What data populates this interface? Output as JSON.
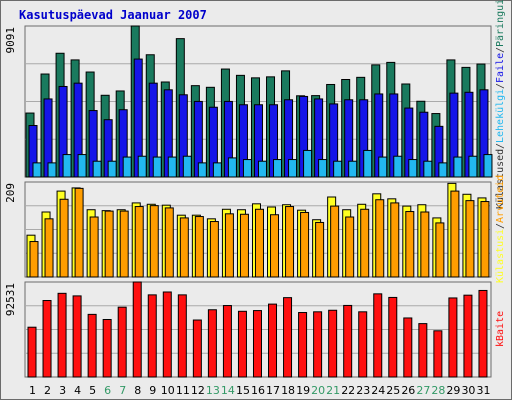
{
  "title": "Kasutuspäevad Jaanuar 2007",
  "colors": {
    "title": "#0000cc",
    "plot_bg": "#ebebeb",
    "frame_border": "#6b6b6b",
    "grid": "#aaaaaa",
    "weekend_label": "#339966",
    "weekday_label": "#000000"
  },
  "chart_data": [
    {
      "type": "bar",
      "panel": "top",
      "ytick_label": "9091",
      "ylim": [
        0,
        9091
      ],
      "right_labels": [
        "Külastused",
        "/",
        "Lehekülgi",
        "/",
        "Faile",
        "/",
        "Päringuid"
      ],
      "categories": [
        "1",
        "2",
        "3",
        "4",
        "5",
        "6",
        "7",
        "8",
        "9",
        "10",
        "11",
        "12",
        "13",
        "14",
        "15",
        "16",
        "17",
        "18",
        "19",
        "20",
        "21",
        "22",
        "23",
        "24",
        "25",
        "26",
        "27",
        "28",
        "29",
        "30",
        "31"
      ],
      "weekend": [
        "6",
        "7",
        "13",
        "14",
        "20",
        "21",
        "27",
        "28"
      ],
      "series": [
        {
          "name": "Päringuid",
          "color": "#1a7a5e",
          "values": [
            3850,
            6200,
            7450,
            7050,
            6320,
            4920,
            5180,
            9091,
            7360,
            5720,
            8330,
            5500,
            5400,
            6500,
            6120,
            5970,
            6030,
            6390,
            4890,
            4900,
            5570,
            5870,
            6000,
            6750,
            6900,
            5600,
            4560,
            3820,
            7050,
            6600,
            6800
          ]
        },
        {
          "name": "Faile",
          "color": "#1515e8",
          "values": [
            3100,
            4700,
            5450,
            5650,
            4000,
            3450,
            4050,
            7100,
            5650,
            5250,
            4950,
            4550,
            4200,
            4550,
            4350,
            4350,
            4350,
            4650,
            4850,
            4700,
            4400,
            4650,
            4650,
            5000,
            5000,
            4150,
            3900,
            3050,
            5050,
            5100,
            5250
          ]
        },
        {
          "name": "Lehekülgi",
          "color": "#22b8f0",
          "values": [
            850,
            850,
            1350,
            1350,
            950,
            950,
            1200,
            1250,
            1200,
            1200,
            1250,
            850,
            850,
            1150,
            1050,
            950,
            1050,
            1050,
            1600,
            1050,
            950,
            950,
            1600,
            1200,
            1250,
            1050,
            950,
            850,
            1200,
            1250,
            1350
          ]
        }
      ]
    },
    {
      "type": "bar",
      "panel": "middle",
      "ytick_label": "209",
      "ylim": [
        0,
        209
      ],
      "right_labels": [
        "Külastusi",
        "/",
        "Arvuteid"
      ],
      "categories": [
        "1",
        "2",
        "3",
        "4",
        "5",
        "6",
        "7",
        "8",
        "9",
        "10",
        "11",
        "12",
        "13",
        "14",
        "15",
        "16",
        "17",
        "18",
        "19",
        "20",
        "21",
        "22",
        "23",
        "24",
        "25",
        "26",
        "27",
        "28",
        "29",
        "30",
        "31"
      ],
      "series": [
        {
          "name": "Külastusi",
          "color": "#ffff22",
          "values": [
            92,
            143,
            189,
            196,
            148,
            146,
            148,
            163,
            160,
            158,
            136,
            136,
            128,
            149,
            148,
            161,
            154,
            159,
            147,
            126,
            176,
            148,
            160,
            183,
            172,
            156,
            159,
            130,
            206,
            182,
            174
          ]
        },
        {
          "name": "Arvuteid",
          "color": "#ff9d00",
          "values": [
            78,
            128,
            171,
            195,
            132,
            145,
            145,
            155,
            157,
            152,
            130,
            133,
            122,
            139,
            138,
            149,
            137,
            155,
            142,
            120,
            156,
            132,
            149,
            170,
            163,
            144,
            143,
            119,
            189,
            168,
            166
          ]
        }
      ]
    },
    {
      "type": "bar",
      "panel": "bottom",
      "ytick_label": "92531",
      "ylim": [
        0,
        92531
      ],
      "right_labels": [
        "kBaite"
      ],
      "categories": [
        "1",
        "2",
        "3",
        "4",
        "5",
        "6",
        "7",
        "8",
        "9",
        "10",
        "11",
        "12",
        "13",
        "14",
        "15",
        "16",
        "17",
        "18",
        "19",
        "20",
        "21",
        "22",
        "23",
        "24",
        "25",
        "26",
        "27",
        "28",
        "29",
        "30",
        "31"
      ],
      "series": [
        {
          "name": "kBaite",
          "color": "#ff1010",
          "values": [
            48500,
            74500,
            81500,
            79000,
            61000,
            56000,
            68000,
            92531,
            80000,
            82800,
            80000,
            55500,
            65500,
            69600,
            64000,
            64700,
            71000,
            77300,
            62800,
            63500,
            65000,
            69700,
            63500,
            81000,
            77500,
            57500,
            52000,
            45000,
            77000,
            79700,
            84300
          ]
        }
      ]
    }
  ]
}
